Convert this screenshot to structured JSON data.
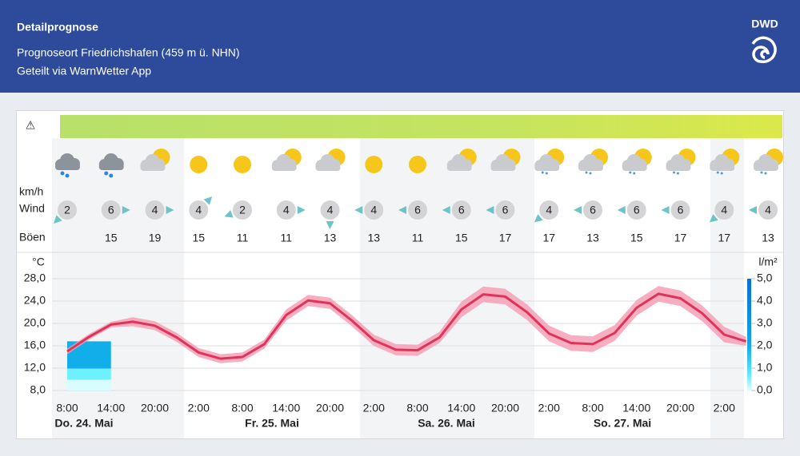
{
  "header": {
    "title": "Detailprognose",
    "location": "Prognoseort Friedrichshafen (459 m ü. NHN)",
    "shared": "Geteilt via WarnWetter App",
    "logo": "DWD"
  },
  "wind": {
    "unit": "km/h",
    "label": "Wind",
    "gust_label": "Böen",
    "speed": [
      2,
      6,
      4,
      4,
      2,
      4,
      4,
      4,
      6,
      6,
      6,
      4,
      6,
      6,
      6,
      4,
      4
    ],
    "gusts": [
      null,
      15,
      19,
      15,
      11,
      11,
      13,
      13,
      11,
      15,
      17,
      17,
      13,
      15,
      17,
      17,
      13
    ]
  },
  "chart_data": {
    "type": "line",
    "y_label": "°C",
    "y2_label": "l/m²",
    "categories": [
      "8:00",
      null,
      "14:00",
      null,
      "20:00",
      null,
      "2:00",
      null,
      "8:00",
      null,
      "14:00",
      null,
      "20:00",
      null,
      "2:00",
      null,
      "8:00",
      null,
      "14:00",
      null,
      "20:00",
      null,
      "2:00",
      null,
      "8:00",
      null,
      "14:00",
      null,
      "20:00",
      null,
      "2:00",
      null
    ],
    "days": [
      "Do. 24. Mai",
      "Fr. 25. Mai",
      "Sa. 26. Mai",
      "So. 27. Mai"
    ],
    "values": [
      15.0,
      17.6,
      19.8,
      20.3,
      19.6,
      17.5,
      14.8,
      13.7,
      14.0,
      16.3,
      21.5,
      24.1,
      23.6,
      20.5,
      17.0,
      15.3,
      15.2,
      17.5,
      22.5,
      25.2,
      24.8,
      22.0,
      18.2,
      16.5,
      16.3,
      18.3,
      22.8,
      25.3,
      24.5,
      21.8,
      18.0,
      16.8
    ],
    "lower": [
      14.5,
      17.1,
      19.3,
      19.5,
      18.8,
      16.7,
      14.0,
      12.9,
      13.2,
      15.5,
      20.5,
      23.1,
      22.6,
      19.5,
      16.0,
      14.3,
      14.2,
      16.5,
      21.1,
      23.8,
      23.4,
      20.6,
      16.8,
      15.1,
      14.9,
      16.9,
      21.4,
      23.9,
      23.1,
      20.4,
      16.6,
      16.0
    ],
    "upper": [
      15.5,
      18.1,
      20.3,
      21.1,
      20.4,
      18.3,
      15.6,
      14.5,
      14.8,
      17.1,
      22.5,
      25.1,
      24.6,
      21.5,
      18.0,
      16.3,
      16.2,
      18.5,
      23.9,
      26.6,
      26.2,
      23.4,
      19.6,
      17.9,
      17.7,
      19.7,
      24.2,
      26.7,
      25.9,
      23.2,
      19.4,
      17.6
    ],
    "color": "#e0335a",
    "band_color": "#f4a0b5",
    "precipitation": {
      "axis": "y2",
      "values": [
        2.2
      ]
    },
    "ylim": [
      8,
      28
    ],
    "yticks": [
      {
        "value": 8,
        "label": "8,0"
      },
      {
        "value": 12,
        "label": "12,0"
      },
      {
        "value": 16,
        "label": "16,0"
      },
      {
        "value": 20,
        "label": "20,0"
      },
      {
        "value": 24,
        "label": "24,0"
      },
      {
        "value": 28,
        "label": "28,0"
      }
    ],
    "y2lim": [
      0,
      5
    ],
    "y2ticks": [
      {
        "value": 0,
        "label": "0,0"
      },
      {
        "value": 1,
        "label": "1,0"
      },
      {
        "value": 2,
        "label": "2,0"
      },
      {
        "value": 3,
        "label": "3,0"
      },
      {
        "value": 4,
        "label": "4,0"
      },
      {
        "value": 5,
        "label": "5,0"
      }
    ],
    "grid": true
  }
}
